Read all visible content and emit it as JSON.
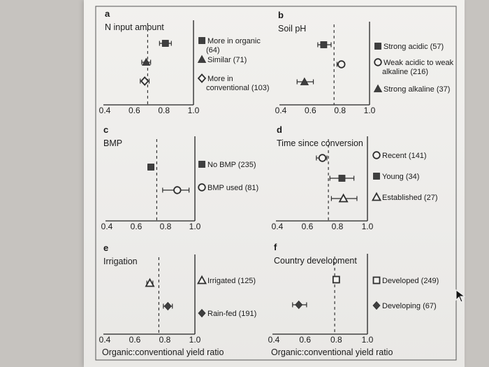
{
  "chart_data": [
    {
      "type": "scatter",
      "panel_letter": "a",
      "title": "N input amount",
      "xlim": [
        0.4,
        1.0
      ],
      "xticks": [
        "0.4",
        "0.6",
        "0.8",
        "1.0"
      ],
      "reference_line": 0.69,
      "series": [
        {
          "name": "More in organic (64)",
          "marker": "square-filled",
          "x": 0.81,
          "ci": [
            0.77,
            0.85
          ]
        },
        {
          "name": "Similar (71)",
          "marker": "triangle-filled",
          "x": 0.68,
          "ci": [
            0.65,
            0.71
          ]
        },
        {
          "name": "More in conventional (103)",
          "marker": "diamond-open",
          "x": 0.67,
          "ci": [
            0.64,
            0.7
          ]
        }
      ]
    },
    {
      "type": "scatter",
      "panel_letter": "b",
      "title": "Soil pH",
      "xlim": [
        0.4,
        1.0
      ],
      "xticks": [
        "0.4",
        "0.6",
        "0.8",
        "1.0"
      ],
      "reference_line": 0.76,
      "series": [
        {
          "name": "Strong acidic (57)",
          "marker": "square-filled",
          "x": 0.69,
          "ci": [
            0.65,
            0.74
          ]
        },
        {
          "name": "Weak acidic to weak alkaline (216)",
          "marker": "circle-open",
          "x": 0.81,
          "ci": [
            0.78,
            0.83
          ]
        },
        {
          "name": "Strong alkaline (37)",
          "marker": "triangle-filled",
          "x": 0.56,
          "ci": [
            0.51,
            0.62
          ]
        }
      ]
    },
    {
      "type": "scatter",
      "panel_letter": "c",
      "title": "BMP",
      "xlim": [
        0.4,
        1.0
      ],
      "xticks": [
        "0.4",
        "0.6",
        "0.8",
        "1.0"
      ],
      "reference_line": 0.74,
      "series": [
        {
          "name": "No BMP (235)",
          "marker": "square-filled",
          "x": 0.7,
          "ci": [
            0.68,
            0.72
          ]
        },
        {
          "name": "BMP used (81)",
          "marker": "circle-open",
          "x": 0.88,
          "ci": [
            0.78,
            0.96
          ]
        }
      ]
    },
    {
      "type": "scatter",
      "panel_letter": "d",
      "title": "Time since conversion",
      "xlim": [
        0.4,
        1.0
      ],
      "xticks": [
        "0.4",
        "0.6",
        "0.8",
        "1.0"
      ],
      "reference_line": 0.74,
      "series": [
        {
          "name": "Recent (141)",
          "marker": "circle-open",
          "x": 0.7,
          "ci": [
            0.66,
            0.73
          ]
        },
        {
          "name": "Young (34)",
          "marker": "square-filled",
          "x": 0.83,
          "ci": [
            0.75,
            0.91
          ]
        },
        {
          "name": "Established (27)",
          "marker": "triangle-open",
          "x": 0.84,
          "ci": [
            0.76,
            0.93
          ]
        }
      ]
    },
    {
      "type": "scatter",
      "panel_letter": "e",
      "title": "Irrigation",
      "xlim": [
        0.4,
        1.0
      ],
      "xticks": [
        "0.4",
        "0.6",
        "0.8",
        "1.0"
      ],
      "xlabel": "Organic:conventional yield ratio",
      "reference_line": 0.76,
      "series": [
        {
          "name": "Irrigated (125)",
          "marker": "triangle-open",
          "x": 0.7,
          "ci": [
            0.68,
            0.72
          ]
        },
        {
          "name": "Rain-fed (191)",
          "marker": "diamond-filled",
          "x": 0.82,
          "ci": [
            0.79,
            0.85
          ]
        }
      ]
    },
    {
      "type": "scatter",
      "panel_letter": "f",
      "title": "Country development",
      "xlim": [
        0.4,
        1.0
      ],
      "xticks": [
        "0.4",
        "0.6",
        "0.8",
        "1.0"
      ],
      "xlabel": "Organic:conventional yield ratio",
      "reference_line": 0.79,
      "series": [
        {
          "name": "Developed (249)",
          "marker": "square-open",
          "x": 0.8,
          "ci": [
            0.78,
            0.82
          ]
        },
        {
          "name": "Developing (67)",
          "marker": "diamond-filled",
          "x": 0.56,
          "ci": [
            0.52,
            0.61
          ]
        }
      ]
    }
  ]
}
